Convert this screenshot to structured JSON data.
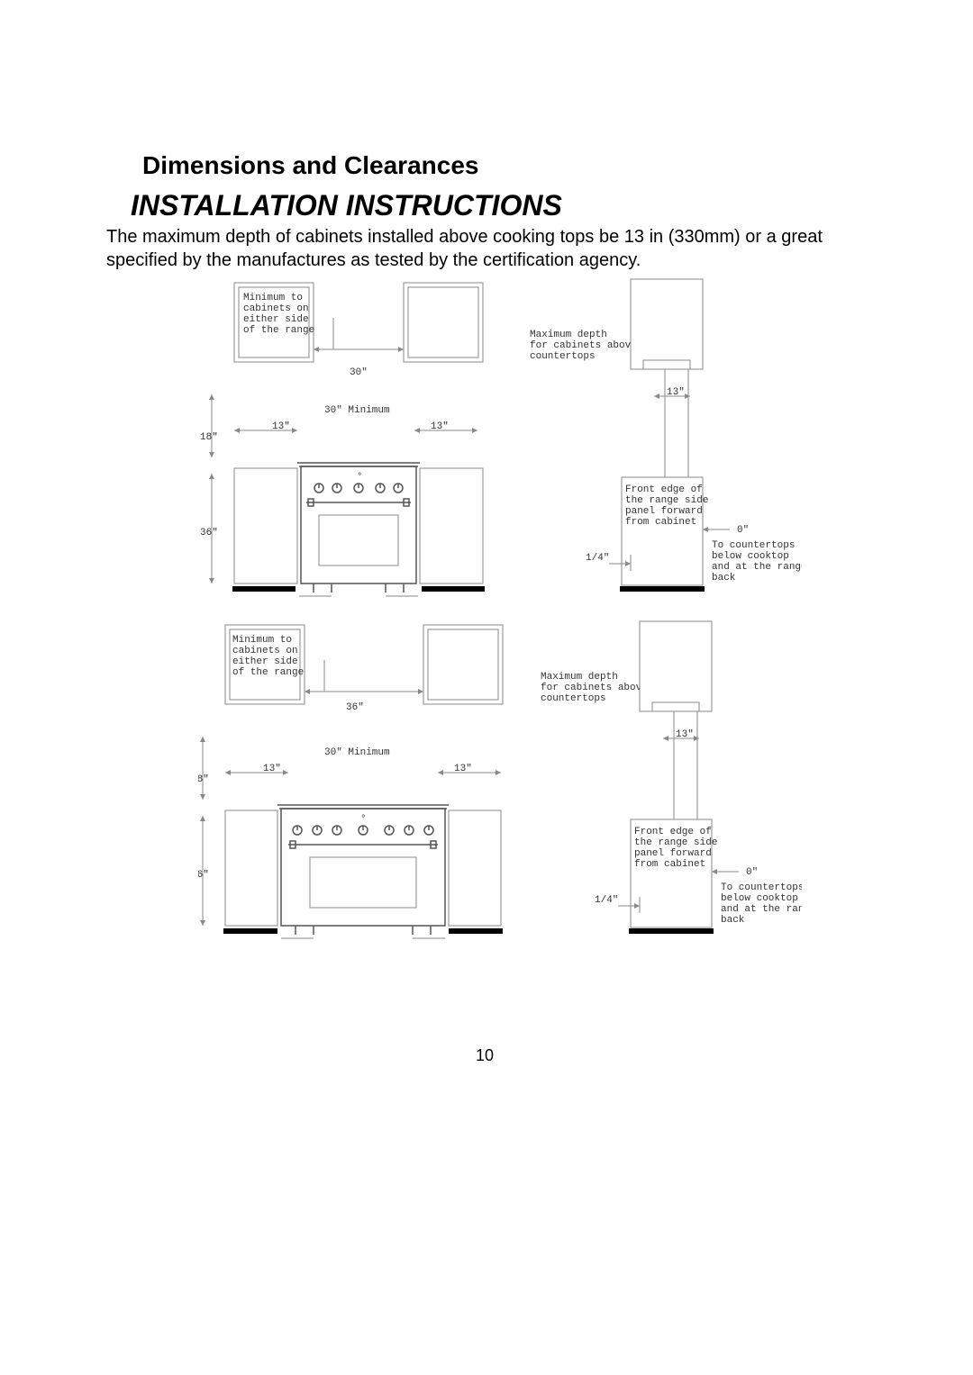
{
  "headings": {
    "h2": "Dimensions and Clearances",
    "h1": "INSTALLATION INSTRUCTIONS"
  },
  "paragraph": "The maximum depth of cabinets installed above cooking tops be 13 in (330mm) or a great specified by the manufactures as tested by the certification agency.",
  "page_number": "10",
  "diagram_common": {
    "label_min_cabinets": "Minimum to\ncabinets on\neither side\nof the range",
    "label_max_depth": "Maximum depth\nfor cabinets above\ncountertops",
    "label_front_edge": "Front edge of\nthe range side\npanel forward\nfrom cabinet",
    "label_to_countertops": "To countertops\nbelow cooktop\nand at the range\nback",
    "dim_30_min": "30\" Minimum",
    "dim_13": "13\"",
    "dim_18": "18\"",
    "dim_36": "36\"",
    "dim_1_4": "1/4\"",
    "dim_0": "0\""
  },
  "diagram_top": {
    "dim_width": "30\"",
    "knob_count": 5
  },
  "diagram_bottom": {
    "dim_width": "36\"",
    "knob_count": 7
  },
  "colors": {
    "page_bg": "#ffffff",
    "text": "#000000",
    "line_light": "#888888",
    "line_med": "#555555",
    "line_thick": "#000000"
  }
}
